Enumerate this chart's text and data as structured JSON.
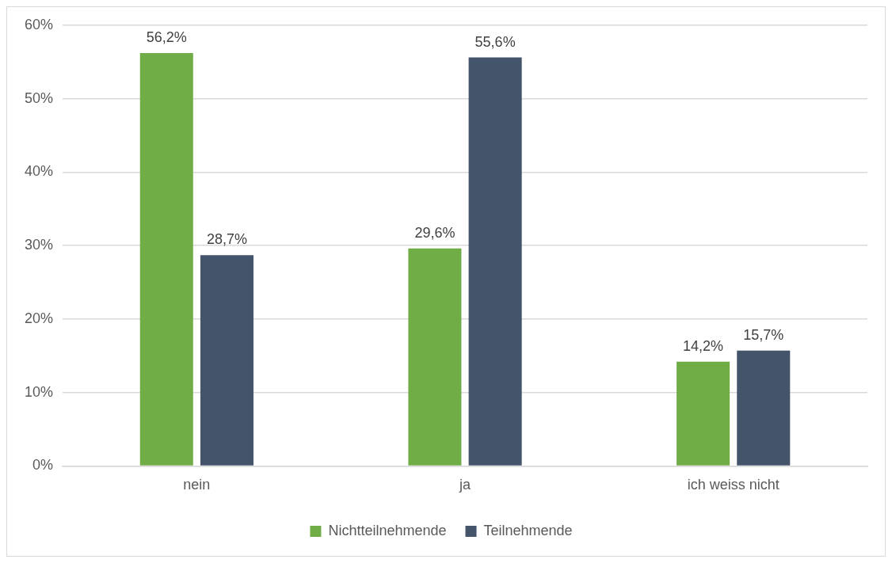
{
  "chart_data": {
    "type": "bar",
    "categories": [
      "nein",
      "ja",
      "ich weiss nicht"
    ],
    "series": [
      {
        "name": "Nichtteilnehmende",
        "color": "#70ad47",
        "values": [
          56.2,
          29.6,
          14.2
        ],
        "value_labels": [
          "56,2%",
          "29,6%",
          "14,2%"
        ]
      },
      {
        "name": "Teilnehmende",
        "color": "#44546a",
        "values": [
          28.7,
          55.6,
          15.7
        ],
        "value_labels": [
          "28,7%",
          "55,6%",
          "15,7%"
        ]
      }
    ],
    "ylim": [
      0,
      60
    ],
    "yticks": [
      {
        "value": 0,
        "label": "0%"
      },
      {
        "value": 10,
        "label": "10%"
      },
      {
        "value": 20,
        "label": "20%"
      },
      {
        "value": 30,
        "label": "30%"
      },
      {
        "value": 40,
        "label": "40%"
      },
      {
        "value": 50,
        "label": "50%"
      },
      {
        "value": 60,
        "label": "60%"
      }
    ],
    "grid": "y",
    "legend": "bottom"
  }
}
